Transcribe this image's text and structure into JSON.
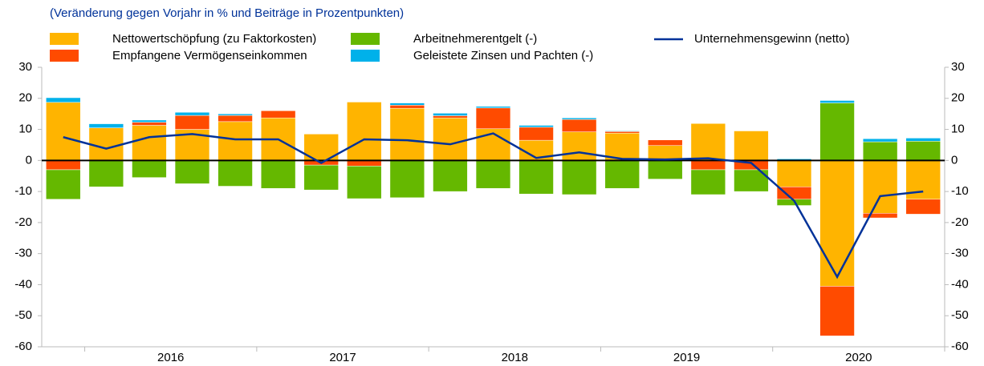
{
  "chart_data": {
    "type": "bar",
    "stacked": true,
    "subtitle": "(Veränderung gegen Vorjahr in % und Beiträge in Prozentpunkten)",
    "categories": [
      null,
      null,
      null,
      null,
      null,
      null,
      null,
      null,
      null,
      null,
      null,
      null,
      null,
      null,
      null,
      null,
      null,
      null,
      null,
      null,
      null
    ],
    "year_labels": [
      "2016",
      "2017",
      "2018",
      "2019",
      "2020"
    ],
    "ylim": [
      -60,
      30
    ],
    "yticks": [
      -60,
      -50,
      -40,
      -30,
      -20,
      -10,
      0,
      10,
      20,
      30
    ],
    "grid": false,
    "series": [
      {
        "name": "Nettowertschöpfung (zu Faktorkosten)",
        "color": "#ffb400",
        "type": "bar",
        "values": [
          18.7,
          10.5,
          11.3,
          10,
          12.5,
          13.7,
          8.5,
          18.8,
          16.8,
          13.7,
          10.2,
          6.5,
          9.2,
          8.8,
          4.8,
          11.9,
          9.5,
          -8.5,
          -40.5,
          -17,
          -12.5
        ]
      },
      {
        "name": "Empfangene Vermögenseinkommen",
        "color": "#ff4b00",
        "type": "bar",
        "values": [
          -3,
          0,
          1,
          4.5,
          2,
          2.3,
          -1.5,
          -1.8,
          1,
          0.7,
          6.7,
          4.2,
          4,
          0.5,
          1.8,
          -3,
          -3,
          -4,
          -16,
          -1.5,
          -4.8
        ]
      },
      {
        "name": "Arbeitnehmerentgelt (-)",
        "color": "#65b800",
        "type": "bar",
        "values": [
          -9.5,
          -8.5,
          -5.5,
          -7.5,
          -8.3,
          -9,
          -8,
          -10.5,
          -12,
          -10,
          -9,
          -10.8,
          -11,
          -9,
          -6,
          -8,
          -7,
          -2,
          18.5,
          6,
          6.2
        ]
      },
      {
        "name": "Geleistete Zinsen und Pachten (-)",
        "color": "#00b1ea",
        "type": "bar",
        "values": [
          1.5,
          1.3,
          0.7,
          1,
          0.5,
          0,
          0,
          0,
          0.7,
          0.8,
          0.5,
          0.6,
          0.5,
          0.2,
          0,
          0,
          0,
          0.5,
          0.8,
          1,
          1
        ]
      },
      {
        "name": "Unternehmensgewinn (netto)",
        "color": "#003299",
        "type": "line",
        "values": [
          7.5,
          3.8,
          7.5,
          8.5,
          6.8,
          6.8,
          -0.8,
          6.8,
          6.5,
          5.2,
          8.7,
          0.8,
          2.6,
          0.5,
          0.3,
          0.7,
          -0.8,
          -13,
          -37.5,
          -11.5,
          -10
        ]
      }
    ]
  }
}
